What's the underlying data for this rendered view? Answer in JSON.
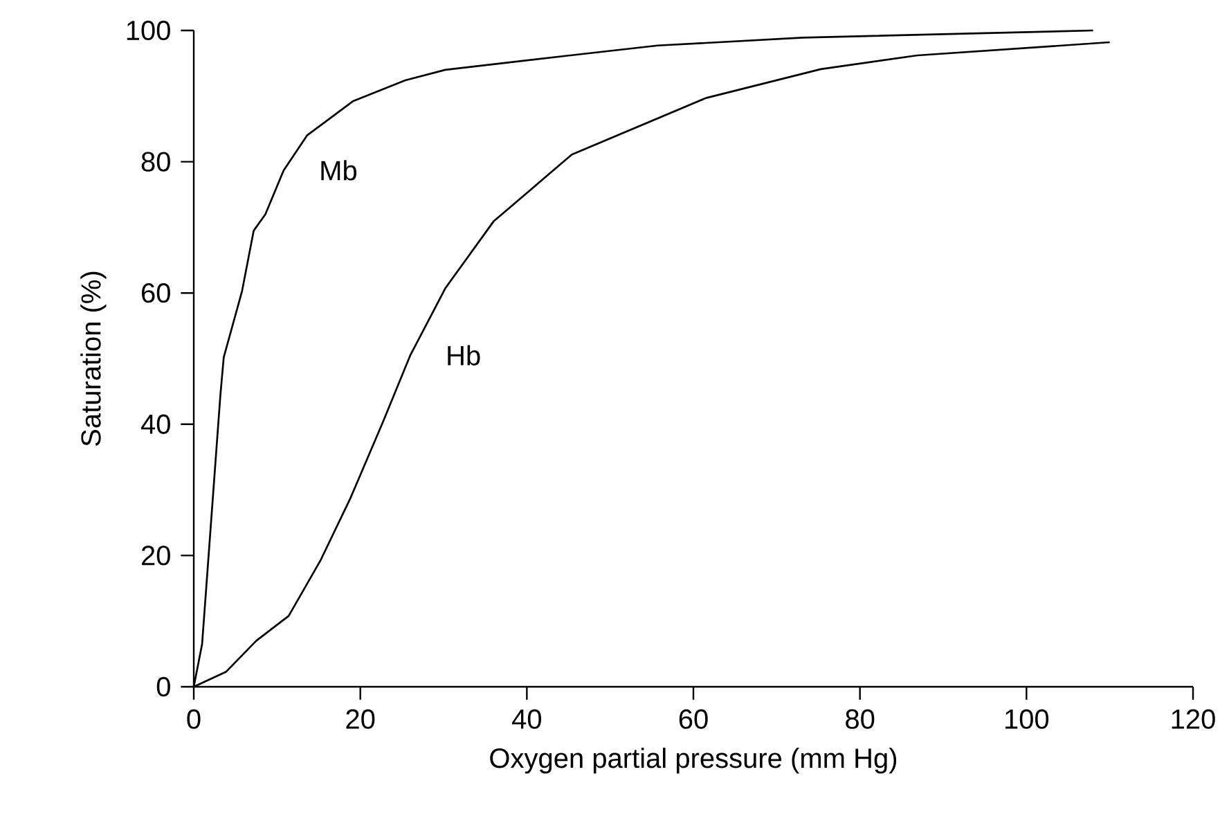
{
  "chart_data": {
    "type": "line",
    "xlabel": "Oxygen partial pressure (mm Hg)",
    "ylabel": "Saturation (%)",
    "xlim": [
      0,
      120
    ],
    "ylim": [
      0,
      100
    ],
    "xticks": [
      0,
      20,
      40,
      60,
      80,
      100,
      120
    ],
    "yticks": [
      0,
      20,
      40,
      60,
      80,
      100
    ],
    "grid": false,
    "legend": false,
    "marker": "none",
    "line_style": "solid",
    "series": [
      {
        "name": "Mb",
        "color": "#000000",
        "x": [
          0,
          1,
          3.2,
          3.6,
          5.8,
          7.2,
          8.6,
          10.8,
          13.6,
          19.1,
          25.4,
          30.2,
          45.2,
          55.7,
          73.1,
          108
        ],
        "values": [
          0,
          6.5,
          44.5,
          50.2,
          60.3,
          69.5,
          72,
          78.7,
          84,
          89.2,
          92.4,
          94,
          96.2,
          97.7,
          98.9,
          100
        ]
      },
      {
        "name": "Hb",
        "color": "#000000",
        "x": [
          0,
          3.9,
          7.5,
          11.4,
          15.2,
          18.8,
          22.7,
          26,
          30.2,
          36,
          45.4,
          61.5,
          75.3,
          86.9,
          110
        ],
        "values": [
          0,
          2.3,
          7,
          10.8,
          19.2,
          28.7,
          40.3,
          50.5,
          60.7,
          70.9,
          81.1,
          89.7,
          94.1,
          96.2,
          98.2
        ]
      }
    ]
  }
}
